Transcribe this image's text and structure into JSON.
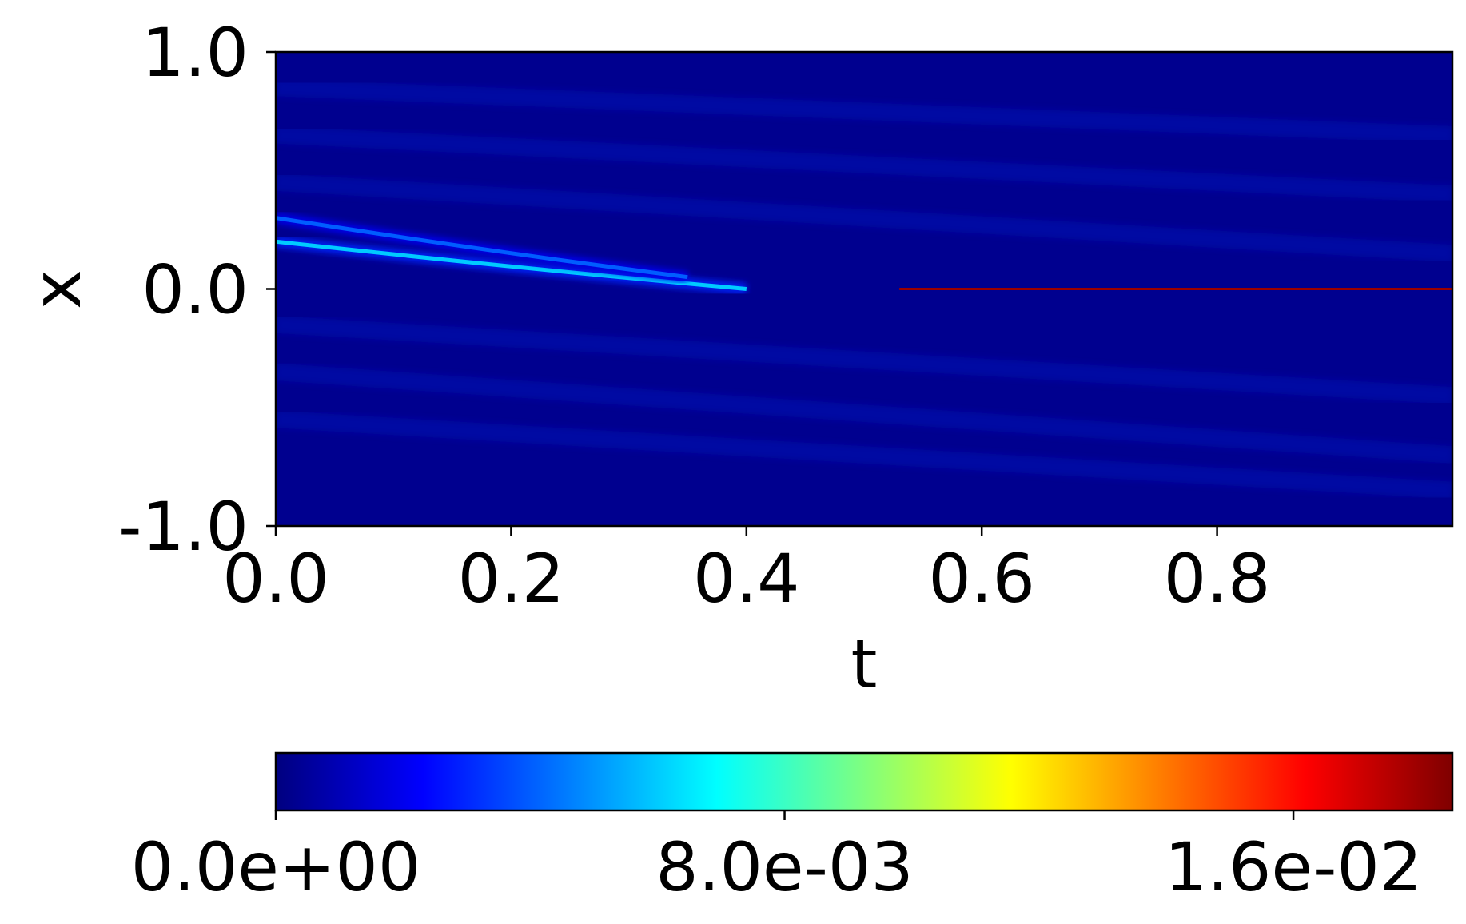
{
  "chart_data": {
    "type": "heatmap",
    "title": "",
    "xlabel": "t",
    "ylabel": "x",
    "xlim": [
      0.0,
      1.0
    ],
    "ylim": [
      -1.0,
      1.0
    ],
    "x_ticks": [
      0.0,
      0.2,
      0.4,
      0.6,
      0.8
    ],
    "x_tick_labels": [
      "0.0",
      "0.2",
      "0.4",
      "0.6",
      "0.8"
    ],
    "y_ticks": [
      1.0,
      0.0,
      -1.0
    ],
    "y_tick_labels": [
      "1.0",
      "0.0",
      "-1.0"
    ],
    "colormap": "jet",
    "colorbar": {
      "orientation": "horizontal",
      "range": [
        0.0,
        0.0185
      ],
      "ticks": [
        0.0,
        0.008,
        0.016
      ],
      "tick_labels": [
        "0.0e+00",
        "8.0e-03",
        "1.6e-02"
      ]
    },
    "features": [
      {
        "description": "upper bright band",
        "t_start": 0.0,
        "x_start": 0.2,
        "t_end": 0.4,
        "x_end": 0.0,
        "peak": 0.006
      },
      {
        "description": "second band",
        "t_start": 0.0,
        "x_start": 0.3,
        "t_end": 0.35,
        "x_end": 0.05,
        "peak": 0.004
      },
      {
        "description": "sharp line at x=0",
        "t_start": 0.45,
        "t_end": 1.0,
        "x": 0.0,
        "peak": 0.018
      }
    ],
    "colors": {
      "jet_stops": [
        "#00007f",
        "#0000ff",
        "#007fff",
        "#00ffff",
        "#7fff7f",
        "#ffff00",
        "#ff7f00",
        "#ff0000",
        "#7f0000"
      ]
    }
  }
}
